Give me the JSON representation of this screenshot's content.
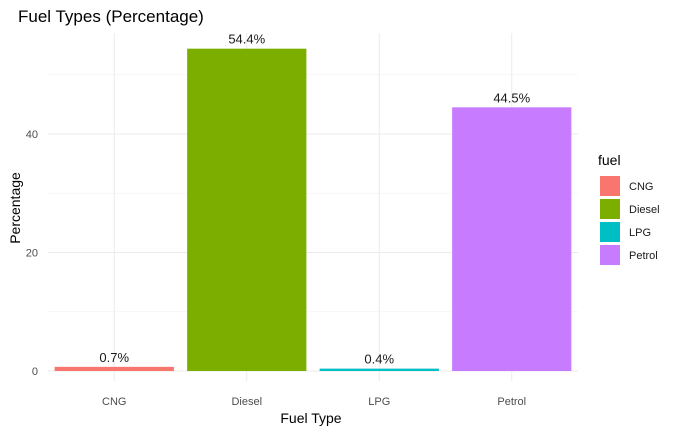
{
  "chart_data": {
    "type": "bar",
    "title": "Fuel Types (Percentage)",
    "xlabel": "Fuel Type",
    "ylabel": "Percentage",
    "categories": [
      "CNG",
      "Diesel",
      "LPG",
      "Petrol"
    ],
    "values": [
      0.7,
      54.4,
      0.4,
      44.5
    ],
    "data_labels": [
      "0.7%",
      "54.4%",
      "0.4%",
      "44.5%"
    ],
    "colors": [
      "#F8766D",
      "#7CAE00",
      "#00BFC4",
      "#C77CFF"
    ],
    "ylim": [
      0,
      57
    ],
    "yticks": [
      0,
      20,
      40
    ],
    "grid": true,
    "legend": {
      "title": "fuel",
      "position": "right",
      "entries": [
        "CNG",
        "Diesel",
        "LPG",
        "Petrol"
      ]
    }
  }
}
